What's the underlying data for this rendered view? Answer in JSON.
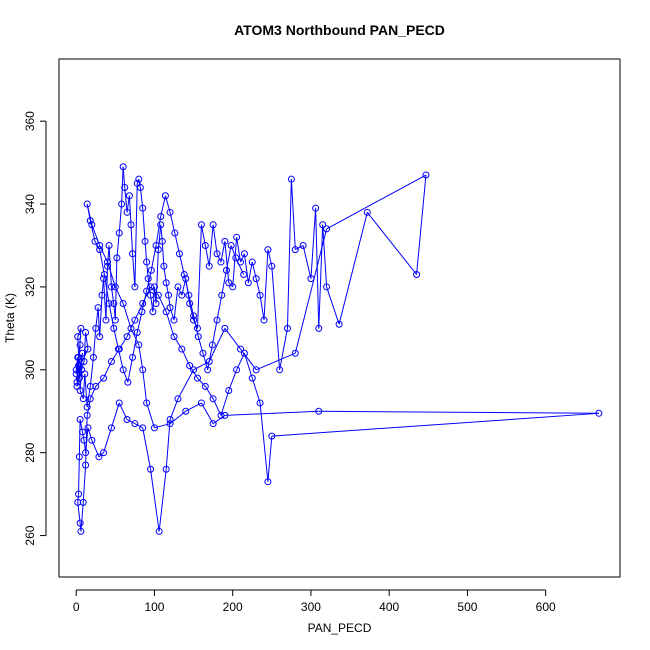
{
  "chart_data": {
    "type": "line",
    "title": "ATOM3 Northbound PAN_PECD",
    "xlabel": "PAN_PECD",
    "ylabel": "Theta (K)",
    "xlim": [
      -22,
      695
    ],
    "ylim": [
      250,
      375
    ],
    "xticks": [
      0,
      100,
      200,
      300,
      400,
      500,
      600
    ],
    "yticks": [
      260,
      280,
      300,
      320,
      340,
      360
    ],
    "grid": false,
    "series": [
      {
        "color": "#0000ff",
        "marker": "open-circle",
        "points": [
          [
            0,
            300
          ],
          [
            2,
            303
          ],
          [
            1,
            297
          ],
          [
            5,
            306
          ],
          [
            3,
            301
          ],
          [
            6,
            310
          ],
          [
            2,
            308
          ],
          [
            4,
            298
          ],
          [
            8,
            304
          ],
          [
            1,
            296
          ],
          [
            10,
            302
          ],
          [
            12,
            309
          ],
          [
            15,
            305
          ],
          [
            0,
            299
          ],
          [
            3,
            303
          ],
          [
            7,
            300
          ],
          [
            5,
            295
          ],
          [
            9,
            293
          ],
          [
            11,
            299
          ],
          [
            14,
            291
          ],
          [
            18,
            296
          ],
          [
            22,
            303
          ],
          [
            25,
            310
          ],
          [
            28,
            315
          ],
          [
            30,
            308
          ],
          [
            33,
            318
          ],
          [
            35,
            322
          ],
          [
            38,
            312
          ],
          [
            40,
            325
          ],
          [
            42,
            330
          ],
          [
            45,
            320
          ],
          [
            48,
            316
          ],
          [
            50,
            312
          ],
          [
            52,
            327
          ],
          [
            55,
            333
          ],
          [
            58,
            340
          ],
          [
            60,
            349
          ],
          [
            62,
            344
          ],
          [
            65,
            338
          ],
          [
            68,
            342
          ],
          [
            70,
            335
          ],
          [
            72,
            328
          ],
          [
            75,
            320
          ],
          [
            78,
            345
          ],
          [
            80,
            346
          ],
          [
            82,
            344
          ],
          [
            85,
            339
          ],
          [
            88,
            331
          ],
          [
            90,
            326
          ],
          [
            92,
            322
          ],
          [
            95,
            318
          ],
          [
            98,
            314
          ],
          [
            100,
            320
          ],
          [
            102,
            316
          ],
          [
            105,
            329
          ],
          [
            108,
            335
          ],
          [
            110,
            331
          ],
          [
            112,
            325
          ],
          [
            115,
            321
          ],
          [
            118,
            318
          ],
          [
            120,
            315
          ],
          [
            125,
            312
          ],
          [
            130,
            320
          ],
          [
            135,
            318
          ],
          [
            140,
            322
          ],
          [
            145,
            316
          ],
          [
            150,
            312
          ],
          [
            155,
            310
          ],
          [
            160,
            335
          ],
          [
            165,
            330
          ],
          [
            170,
            325
          ],
          [
            175,
            335
          ],
          [
            180,
            328
          ],
          [
            185,
            326
          ],
          [
            190,
            331
          ],
          [
            195,
            321
          ],
          [
            200,
            320
          ],
          [
            205,
            332
          ],
          [
            210,
            326
          ],
          [
            215,
            328
          ],
          [
            220,
            321
          ],
          [
            225,
            326
          ],
          [
            230,
            322
          ],
          [
            235,
            318
          ],
          [
            240,
            312
          ],
          [
            245,
            329
          ],
          [
            250,
            325
          ],
          [
            260,
            300
          ],
          [
            270,
            310
          ],
          [
            275,
            346
          ],
          [
            280,
            329
          ],
          [
            290,
            330
          ],
          [
            300,
            322
          ],
          [
            306,
            339
          ],
          [
            310,
            310
          ],
          [
            315,
            335
          ],
          [
            320,
            320
          ],
          [
            336,
            311
          ],
          [
            372,
            338
          ],
          [
            435,
            323
          ],
          [
            447,
            347
          ],
          [
            320,
            334
          ],
          [
            280,
            304
          ],
          [
            230,
            300
          ],
          [
            210,
            305
          ],
          [
            190,
            310
          ],
          [
            170,
            302
          ],
          [
            150,
            300
          ],
          [
            130,
            293
          ],
          [
            120,
            288
          ],
          [
            115,
            276
          ],
          [
            106,
            261
          ],
          [
            95,
            276
          ],
          [
            85,
            286
          ],
          [
            75,
            287
          ],
          [
            65,
            288
          ],
          [
            55,
            292
          ],
          [
            45,
            286
          ],
          [
            35,
            280
          ],
          [
            29,
            279
          ],
          [
            20,
            283
          ],
          [
            15,
            286
          ],
          [
            12,
            280
          ],
          [
            10,
            283
          ],
          [
            8,
            285
          ],
          [
            5,
            288
          ],
          [
            4,
            279
          ],
          [
            3,
            270
          ],
          [
            2,
            268
          ],
          [
            5,
            263
          ],
          [
            6,
            261
          ],
          [
            9,
            268
          ],
          [
            12,
            277
          ],
          [
            14,
            289
          ],
          [
            18,
            293
          ],
          [
            25,
            296
          ],
          [
            35,
            298
          ],
          [
            45,
            302
          ],
          [
            55,
            305
          ],
          [
            65,
            308
          ],
          [
            75,
            312
          ],
          [
            85,
            316
          ],
          [
            95,
            320
          ],
          [
            105,
            318
          ],
          [
            115,
            314
          ],
          [
            125,
            308
          ],
          [
            135,
            305
          ],
          [
            145,
            301
          ],
          [
            155,
            298
          ],
          [
            165,
            296
          ],
          [
            175,
            293
          ],
          [
            185,
            289
          ],
          [
            195,
            295
          ],
          [
            205,
            300
          ],
          [
            215,
            304
          ],
          [
            225,
            298
          ],
          [
            235,
            292
          ],
          [
            245,
            273
          ],
          [
            250,
            284
          ],
          [
            668,
            289.5
          ],
          [
            310,
            290
          ],
          [
            190,
            289
          ],
          [
            175,
            287
          ],
          [
            160,
            292
          ],
          [
            140,
            290
          ],
          [
            120,
            287
          ],
          [
            100,
            286
          ],
          [
            90,
            292
          ],
          [
            85,
            300
          ],
          [
            80,
            306
          ],
          [
            70,
            310
          ],
          [
            60,
            316
          ],
          [
            50,
            320
          ],
          [
            40,
            326
          ],
          [
            30,
            330
          ],
          [
            20,
            335
          ],
          [
            14,
            340
          ],
          [
            18,
            336
          ],
          [
            24,
            331
          ],
          [
            30,
            329
          ],
          [
            36,
            323
          ],
          [
            42,
            316
          ],
          [
            48,
            310
          ],
          [
            54,
            305
          ],
          [
            60,
            300
          ],
          [
            66,
            297
          ],
          [
            72,
            303
          ],
          [
            78,
            309
          ],
          [
            84,
            314
          ],
          [
            90,
            319
          ],
          [
            96,
            324
          ],
          [
            102,
            330
          ],
          [
            108,
            337
          ],
          [
            114,
            342
          ],
          [
            120,
            338
          ],
          [
            126,
            333
          ],
          [
            132,
            328
          ],
          [
            138,
            323
          ],
          [
            144,
            318
          ],
          [
            150,
            313
          ],
          [
            156,
            308
          ],
          [
            162,
            304
          ],
          [
            168,
            300
          ],
          [
            174,
            306
          ],
          [
            180,
            312
          ],
          [
            186,
            318
          ],
          [
            192,
            324
          ],
          [
            198,
            330
          ],
          [
            204,
            327
          ],
          [
            214,
            323
          ]
        ]
      }
    ]
  }
}
